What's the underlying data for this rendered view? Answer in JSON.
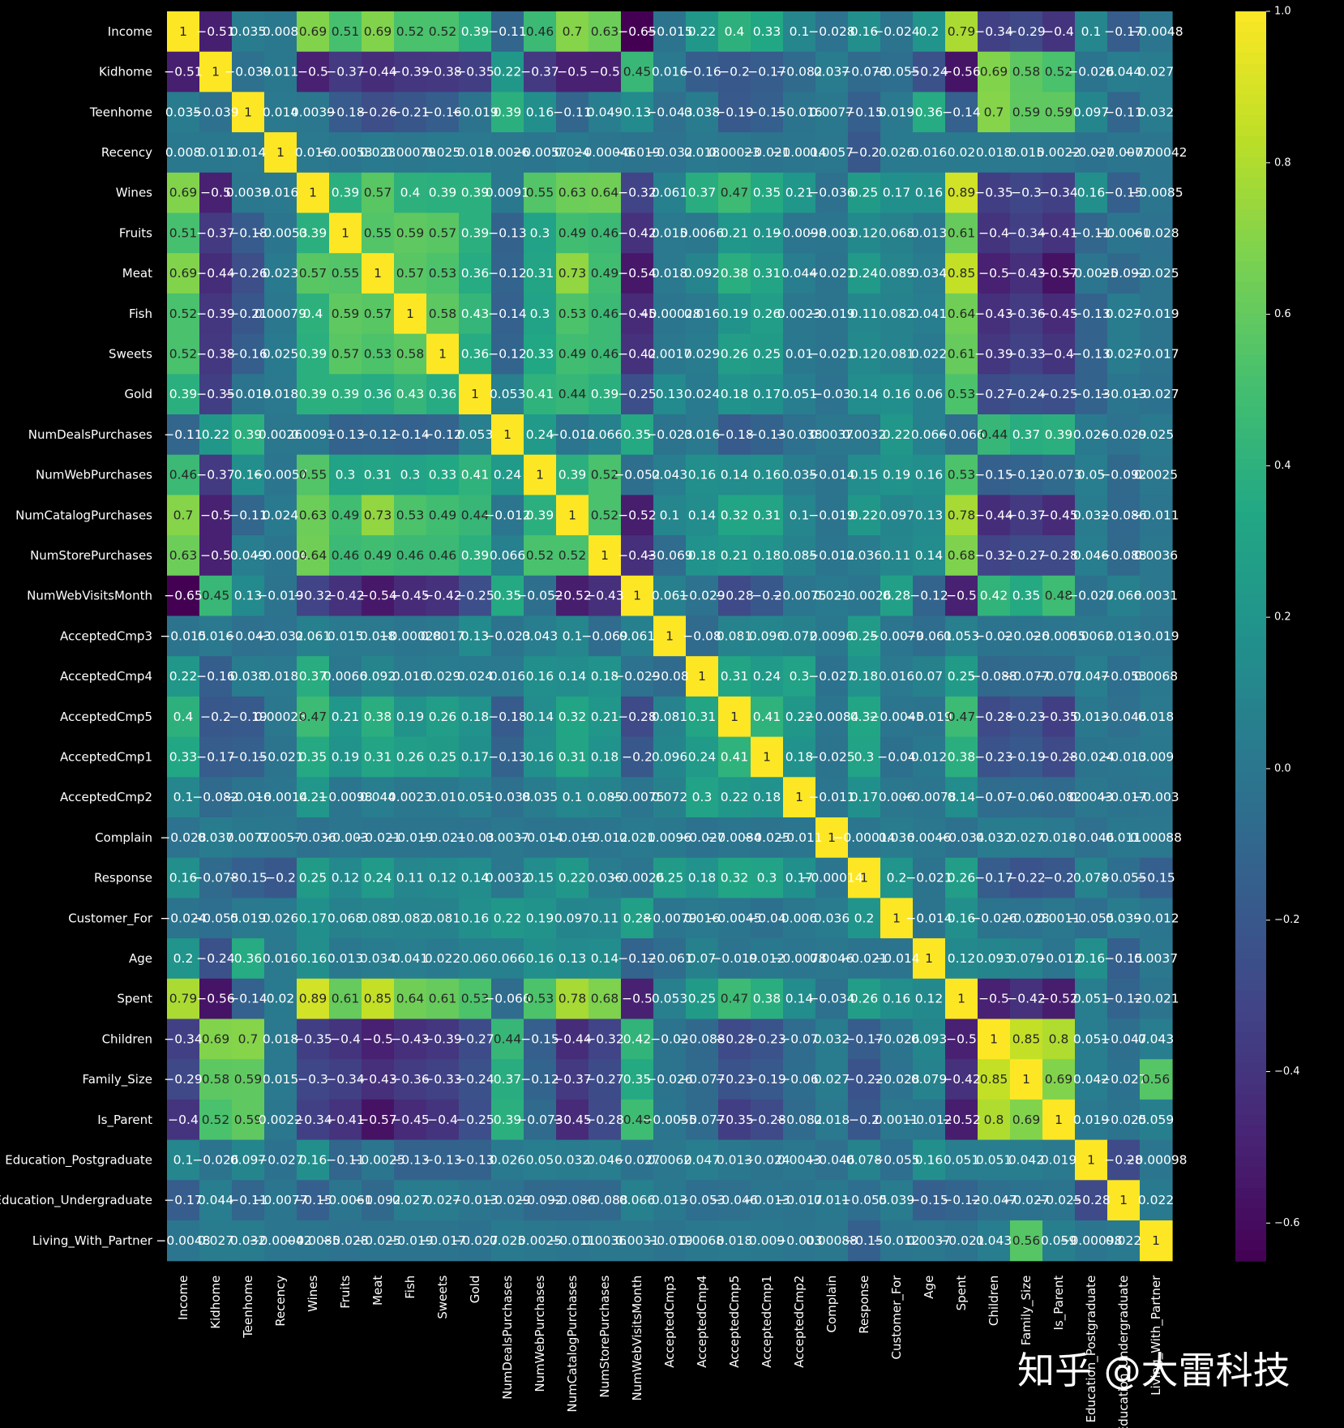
{
  "chart_data": {
    "type": "heatmap",
    "title": "",
    "xlabel": "",
    "ylabel": "",
    "labels": [
      "Income",
      "Kidhome",
      "Teenhome",
      "Recency",
      "Wines",
      "Fruits",
      "Meat",
      "Fish",
      "Sweets",
      "Gold",
      "NumDealsPurchases",
      "NumWebPurchases",
      "NumCatalogPurchases",
      "NumStorePurchases",
      "NumWebVisitsMonth",
      "AcceptedCmp3",
      "AcceptedCmp4",
      "AcceptedCmp5",
      "AcceptedCmp1",
      "AcceptedCmp2",
      "Complain",
      "Response",
      "Customer_For",
      "Age",
      "Spent",
      "Children",
      "Family_Size",
      "Is_Parent",
      "Education_Postgraduate",
      "Education_Undergraduate",
      "Living_With_Partner"
    ],
    "values": [
      [
        1,
        -0.51,
        0.035,
        0.008,
        0.69,
        0.51,
        0.69,
        0.52,
        0.52,
        0.39,
        -0.11,
        0.46,
        0.7,
        0.63,
        -0.65,
        -0.015,
        0.22,
        0.4,
        0.33,
        0.1,
        -0.028,
        0.16,
        -0.024,
        0.2,
        0.79,
        -0.34,
        -0.29,
        -0.4,
        0.1,
        -0.17,
        -0.0048
      ],
      [
        -0.51,
        1,
        -0.039,
        0.011,
        -0.5,
        -0.37,
        -0.44,
        -0.39,
        -0.38,
        -0.35,
        0.22,
        -0.37,
        -0.5,
        -0.5,
        0.45,
        0.016,
        -0.16,
        -0.2,
        -0.17,
        -0.082,
        0.037,
        -0.078,
        -0.055,
        -0.24,
        -0.56,
        0.69,
        0.58,
        0.52,
        -0.026,
        0.044,
        0.027
      ],
      [
        0.035,
        -0.039,
        1,
        0.014,
        0.0039,
        -0.18,
        -0.26,
        -0.21,
        -0.16,
        -0.019,
        0.39,
        0.16,
        -0.11,
        0.049,
        0.13,
        -0.043,
        0.038,
        -0.19,
        -0.15,
        -0.016,
        0.0077,
        -0.15,
        0.019,
        0.36,
        -0.14,
        0.7,
        0.59,
        0.59,
        0.097,
        -0.11,
        0.032
      ],
      [
        0.008,
        0.011,
        0.014,
        1,
        0.016,
        -0.0053,
        0.023,
        0.00079,
        0.025,
        0.018,
        0.0026,
        -0.0057,
        0.024,
        -0.00046,
        -0.019,
        -0.032,
        0.018,
        0.00023,
        -0.021,
        -0.0014,
        0.0057,
        -0.2,
        0.026,
        0.016,
        0.02,
        0.018,
        0.015,
        0.0022,
        -0.027,
        -0.0077,
        -0.00042
      ],
      [
        0.69,
        -0.5,
        0.0039,
        0.016,
        1,
        0.39,
        0.57,
        0.4,
        0.39,
        0.39,
        0.0091,
        0.55,
        0.63,
        0.64,
        -0.32,
        0.061,
        0.37,
        0.47,
        0.35,
        0.21,
        -0.036,
        0.25,
        0.17,
        0.16,
        0.89,
        -0.35,
        -0.3,
        -0.34,
        0.16,
        -0.15,
        -0.0085
      ],
      [
        0.51,
        -0.37,
        -0.18,
        -0.0053,
        0.39,
        1,
        0.55,
        0.59,
        0.57,
        0.39,
        -0.13,
        0.3,
        0.49,
        0.46,
        -0.42,
        0.015,
        0.0066,
        0.21,
        0.19,
        -0.0098,
        -0.003,
        0.12,
        0.068,
        0.013,
        0.61,
        -0.4,
        -0.34,
        -0.41,
        -0.11,
        -0.0061,
        -0.028
      ],
      [
        0.69,
        -0.44,
        -0.26,
        0.023,
        0.57,
        0.55,
        1,
        0.57,
        0.53,
        0.36,
        -0.12,
        0.31,
        0.73,
        0.49,
        -0.54,
        0.018,
        0.092,
        0.38,
        0.31,
        0.044,
        -0.021,
        0.24,
        0.089,
        0.034,
        0.85,
        -0.5,
        -0.43,
        -0.57,
        -0.0025,
        -0.092,
        -0.025
      ],
      [
        0.52,
        -0.39,
        -0.21,
        0.00079,
        0.4,
        0.59,
        0.57,
        1,
        0.58,
        0.43,
        -0.14,
        0.3,
        0.53,
        0.46,
        -0.45,
        -0.00028,
        0.016,
        0.19,
        0.26,
        0.0023,
        -0.019,
        0.11,
        0.082,
        0.041,
        0.64,
        -0.43,
        -0.36,
        -0.45,
        -0.13,
        0.027,
        -0.019
      ],
      [
        0.52,
        -0.38,
        -0.16,
        0.025,
        0.39,
        0.57,
        0.53,
        0.58,
        1,
        0.36,
        -0.12,
        0.33,
        0.49,
        0.46,
        -0.42,
        0.0017,
        0.029,
        0.26,
        0.25,
        0.01,
        -0.021,
        0.12,
        0.081,
        0.022,
        0.61,
        -0.39,
        -0.33,
        -0.4,
        -0.13,
        0.027,
        -0.017
      ],
      [
        0.39,
        -0.35,
        -0.019,
        0.018,
        0.39,
        0.39,
        0.36,
        0.43,
        0.36,
        1,
        0.053,
        0.41,
        0.44,
        0.39,
        -0.25,
        0.13,
        0.024,
        0.18,
        0.17,
        0.051,
        -0.03,
        0.14,
        0.16,
        0.06,
        0.53,
        -0.27,
        -0.24,
        -0.25,
        -0.13,
        -0.013,
        -0.027
      ],
      [
        -0.11,
        0.22,
        0.39,
        0.0026,
        0.0091,
        -0.13,
        -0.12,
        -0.14,
        -0.12,
        0.053,
        1,
        0.24,
        -0.012,
        0.066,
        0.35,
        -0.023,
        0.016,
        -0.18,
        -0.13,
        -0.038,
        0.0037,
        0.0032,
        0.22,
        0.066,
        -0.066,
        0.44,
        0.37,
        0.39,
        0.026,
        -0.029,
        0.025
      ],
      [
        0.46,
        -0.37,
        0.16,
        -0.0057,
        0.55,
        0.3,
        0.31,
        0.3,
        0.33,
        0.41,
        0.24,
        1,
        0.39,
        0.52,
        -0.052,
        0.043,
        0.16,
        0.14,
        0.16,
        0.035,
        -0.014,
        0.15,
        0.19,
        0.16,
        0.53,
        -0.15,
        -0.12,
        -0.073,
        0.05,
        -0.092,
        0.0025
      ],
      [
        0.7,
        -0.5,
        -0.11,
        0.024,
        0.63,
        0.49,
        0.73,
        0.53,
        0.49,
        0.44,
        -0.012,
        0.39,
        1,
        0.52,
        -0.52,
        0.1,
        0.14,
        0.32,
        0.31,
        0.1,
        -0.019,
        0.22,
        0.097,
        0.13,
        0.78,
        -0.44,
        -0.37,
        -0.45,
        0.032,
        -0.086,
        -0.011
      ],
      [
        0.63,
        -0.5,
        0.049,
        -0.0004,
        0.64,
        0.46,
        0.49,
        0.46,
        0.46,
        0.39,
        0.066,
        0.52,
        0.52,
        1,
        -0.43,
        -0.069,
        0.18,
        0.21,
        0.18,
        0.085,
        -0.012,
        0.036,
        0.11,
        0.14,
        0.68,
        -0.32,
        -0.27,
        -0.28,
        0.046,
        -0.088,
        0.0036
      ],
      [
        -0.65,
        0.45,
        0.13,
        -0.019,
        -0.32,
        -0.42,
        -0.54,
        -0.45,
        -0.42,
        -0.25,
        0.35,
        -0.052,
        -0.52,
        -0.43,
        1,
        0.061,
        -0.029,
        -0.28,
        -0.2,
        -0.0075,
        0.021,
        -0.0026,
        0.28,
        -0.12,
        -0.5,
        0.42,
        0.35,
        0.48,
        -0.027,
        0.066,
        0.0031
      ],
      [
        -0.015,
        0.016,
        -0.043,
        -0.032,
        0.061,
        0.015,
        0.018,
        -0.00028,
        0.0017,
        0.13,
        -0.023,
        0.043,
        0.1,
        -0.069,
        0.061,
        1,
        -0.08,
        0.081,
        0.096,
        0.072,
        0.0096,
        0.25,
        -0.0079,
        -0.061,
        0.053,
        -0.02,
        -0.026,
        -0.0055,
        0.0062,
        0.013,
        -0.019
      ],
      [
        0.22,
        -0.16,
        0.038,
        0.018,
        0.37,
        0.0066,
        0.092,
        0.016,
        0.029,
        0.024,
        0.016,
        0.16,
        0.14,
        0.18,
        -0.029,
        -0.08,
        1,
        0.31,
        0.24,
        0.3,
        -0.027,
        0.18,
        0.016,
        0.07,
        0.25,
        -0.088,
        -0.077,
        -0.077,
        0.047,
        -0.053,
        0.0068
      ],
      [
        0.4,
        -0.2,
        -0.19,
        0.00023,
        0.47,
        0.21,
        0.38,
        0.19,
        0.26,
        0.18,
        -0.18,
        0.14,
        0.32,
        0.21,
        -0.28,
        0.081,
        0.31,
        1,
        0.41,
        0.22,
        -0.0084,
        0.32,
        -0.0045,
        -0.019,
        0.47,
        -0.28,
        -0.23,
        -0.35,
        0.013,
        -0.046,
        0.018
      ],
      [
        0.33,
        -0.17,
        -0.15,
        -0.021,
        0.35,
        0.19,
        0.31,
        0.26,
        0.25,
        0.17,
        -0.13,
        0.16,
        0.31,
        0.18,
        -0.2,
        0.096,
        0.24,
        0.41,
        1,
        0.18,
        -0.025,
        0.3,
        -0.04,
        0.012,
        0.38,
        -0.23,
        -0.19,
        -0.28,
        -0.024,
        -0.013,
        0.009
      ],
      [
        0.1,
        -0.082,
        -0.016,
        -0.0014,
        0.21,
        -0.0098,
        0.044,
        0.0023,
        0.01,
        0.051,
        -0.038,
        0.035,
        0.1,
        0.085,
        -0.0075,
        0.072,
        0.3,
        0.22,
        0.18,
        1,
        -0.011,
        0.17,
        0.006,
        -0.0078,
        0.14,
        -0.07,
        -0.06,
        -0.082,
        0.0043,
        -0.017,
        -0.003
      ],
      [
        -0.028,
        0.037,
        0.0077,
        0.0057,
        -0.036,
        -0.003,
        -0.021,
        -0.019,
        -0.021,
        -0.03,
        0.0037,
        -0.014,
        -0.019,
        -0.012,
        0.021,
        0.0096,
        -0.027,
        -0.0084,
        -0.025,
        -0.011,
        1,
        -0.00014,
        0.036,
        0.0046,
        -0.034,
        0.032,
        0.027,
        0.018,
        -0.046,
        0.011,
        0.00088
      ],
      [
        0.16,
        -0.078,
        -0.15,
        -0.2,
        0.25,
        0.12,
        0.24,
        0.11,
        0.12,
        0.14,
        0.0032,
        0.15,
        0.22,
        0.036,
        -0.0026,
        0.25,
        0.18,
        0.32,
        0.3,
        0.17,
        -0.00014,
        1,
        0.2,
        -0.021,
        0.26,
        -0.17,
        -0.22,
        -0.2,
        0.078,
        -0.055,
        -0.15
      ],
      [
        -0.024,
        -0.055,
        0.019,
        0.026,
        0.17,
        0.068,
        0.089,
        0.082,
        0.081,
        0.16,
        0.22,
        0.19,
        0.097,
        0.11,
        0.28,
        -0.0079,
        0.016,
        -0.0045,
        -0.04,
        0.006,
        0.036,
        0.2,
        1,
        -0.014,
        0.16,
        -0.026,
        -0.028,
        0.0011,
        -0.055,
        0.039,
        -0.012
      ],
      [
        0.2,
        -0.24,
        0.36,
        0.016,
        0.16,
        0.013,
        0.034,
        0.041,
        0.022,
        0.06,
        0.066,
        0.16,
        0.13,
        0.14,
        -0.12,
        -0.061,
        0.07,
        -0.019,
        0.012,
        -0.0078,
        0.0046,
        -0.021,
        -0.014,
        1,
        0.12,
        0.093,
        0.079,
        -0.012,
        0.16,
        -0.15,
        0.0037
      ],
      [
        0.79,
        -0.56,
        -0.14,
        0.02,
        0.89,
        0.61,
        0.85,
        0.64,
        0.61,
        0.53,
        -0.066,
        0.53,
        0.78,
        0.68,
        -0.5,
        0.053,
        0.25,
        0.47,
        0.38,
        0.14,
        -0.034,
        0.26,
        0.16,
        0.12,
        1,
        -0.5,
        -0.42,
        -0.52,
        0.051,
        -0.12,
        -0.021
      ],
      [
        -0.34,
        0.69,
        0.7,
        0.018,
        -0.35,
        -0.4,
        -0.5,
        -0.43,
        -0.39,
        -0.27,
        0.44,
        -0.15,
        -0.44,
        -0.32,
        0.42,
        -0.02,
        -0.088,
        -0.28,
        -0.23,
        -0.07,
        0.032,
        -0.17,
        -0.026,
        0.093,
        -0.5,
        1,
        0.85,
        0.8,
        0.051,
        -0.047,
        0.043
      ],
      [
        -0.29,
        0.58,
        0.59,
        0.015,
        -0.3,
        -0.34,
        -0.43,
        -0.36,
        -0.33,
        -0.24,
        0.37,
        -0.12,
        -0.37,
        -0.27,
        0.35,
        -0.026,
        -0.077,
        -0.23,
        -0.19,
        -0.06,
        0.027,
        -0.22,
        -0.028,
        0.079,
        -0.42,
        0.85,
        1,
        0.69,
        0.042,
        -0.027,
        0.56
      ],
      [
        -0.4,
        0.52,
        0.59,
        0.0022,
        -0.34,
        -0.41,
        -0.57,
        -0.45,
        -0.4,
        -0.25,
        0.39,
        -0.073,
        -0.45,
        -0.28,
        0.48,
        -0.0055,
        -0.077,
        -0.35,
        -0.28,
        -0.082,
        0.018,
        -0.2,
        0.0011,
        -0.012,
        -0.52,
        0.8,
        0.69,
        1,
        0.019,
        -0.025,
        0.059
      ],
      [
        0.1,
        -0.026,
        0.097,
        -0.027,
        0.16,
        -0.11,
        -0.0025,
        -0.13,
        -0.13,
        -0.13,
        0.026,
        0.05,
        0.032,
        0.046,
        -0.027,
        0.0062,
        0.047,
        0.013,
        -0.024,
        0.0043,
        -0.046,
        0.078,
        -0.055,
        0.16,
        0.051,
        0.051,
        0.042,
        0.019,
        1,
        -0.28,
        -0.00098
      ],
      [
        -0.17,
        0.044,
        -0.11,
        -0.0077,
        -0.15,
        -0.0061,
        -0.092,
        0.027,
        0.027,
        -0.013,
        -0.029,
        -0.092,
        -0.086,
        -0.088,
        0.066,
        0.013,
        -0.053,
        -0.046,
        -0.013,
        -0.017,
        0.011,
        -0.055,
        0.039,
        -0.15,
        -0.12,
        -0.047,
        -0.027,
        -0.025,
        -0.28,
        1,
        0.022
      ],
      [
        -0.0048,
        0.027,
        0.032,
        -0.00042,
        -0.0085,
        -0.028,
        -0.025,
        -0.019,
        -0.017,
        -0.027,
        0.025,
        0.0025,
        -0.011,
        0.0036,
        0.0031,
        -0.019,
        0.0068,
        0.018,
        0.009,
        -0.003,
        0.00088,
        -0.15,
        -0.012,
        0.0037,
        -0.021,
        0.043,
        0.56,
        0.059,
        -0.00098,
        0.022,
        1
      ]
    ],
    "colormap": "viridis",
    "vmin": -0.65,
    "vmax": 1.0,
    "colorbar_ticks": [
      1.0,
      0.8,
      0.6,
      0.4,
      0.2,
      0.0,
      -0.2,
      -0.4,
      -0.6
    ],
    "colorbar_tick_labels": [
      "1.0",
      "0.8",
      "0.6",
      "0.4",
      "0.2",
      "0.0",
      "−0.2",
      "−0.4",
      "−0.6"
    ],
    "annotations": true,
    "legend": "colorbar-right"
  },
  "watermark": "知乎 @大雷科技",
  "colors": {
    "background": "#000000",
    "text": "#ffffff"
  }
}
